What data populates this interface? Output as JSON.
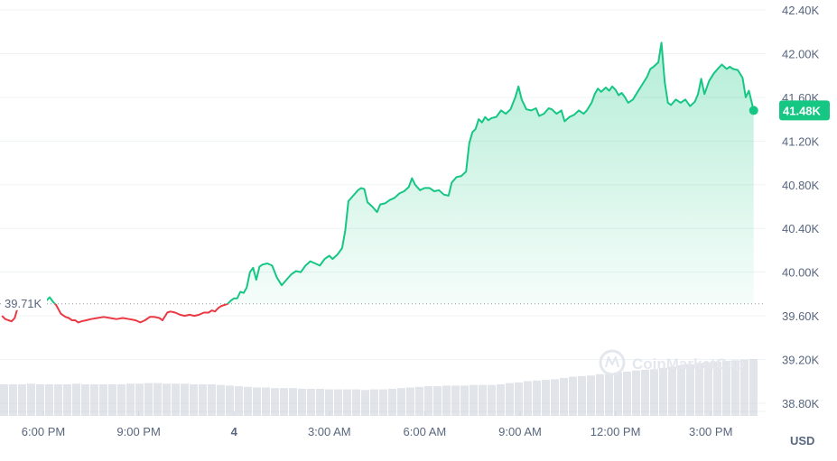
{
  "chart_data": {
    "type": "line",
    "title": "",
    "currency_label": "USD",
    "watermark": "CoinMarketCap",
    "y_ticks": [
      "42.40K",
      "42.00K",
      "41.60K",
      "41.20K",
      "40.80K",
      "40.40K",
      "40.00K",
      "39.60K",
      "39.20K",
      "38.80K"
    ],
    "ylim": [
      38.8,
      42.4
    ],
    "x_ticks": [
      {
        "label": "6:00 PM",
        "hour": 0,
        "bold": false
      },
      {
        "label": "9:00 PM",
        "hour": 3,
        "bold": false
      },
      {
        "label": "4",
        "hour": 6,
        "bold": true
      },
      {
        "label": "3:00 AM",
        "hour": 9,
        "bold": false
      },
      {
        "label": "6:00 AM",
        "hour": 12,
        "bold": false
      },
      {
        "label": "9:00 AM",
        "hour": 15,
        "bold": false
      },
      {
        "label": "12:00 PM",
        "hour": 18,
        "bold": false
      },
      {
        "label": "3:00 PM",
        "hour": 21,
        "bold": false
      }
    ],
    "open_price": 39.71,
    "open_label": "39.71K",
    "last_price": 41.48,
    "last_label": "41.48K",
    "colors": {
      "up": "#16c784",
      "down": "#ea3943",
      "grid": "#eff2f5",
      "volume": "#d4d9e0"
    },
    "series": [
      {
        "points": [
          [
            -1.3,
            39.6
          ],
          [
            -1.2,
            39.57
          ],
          [
            -1.1,
            39.56
          ],
          [
            -1.0,
            39.55
          ],
          [
            -0.9,
            39.58
          ],
          [
            -0.8,
            39.68
          ],
          [
            -0.7,
            39.76
          ],
          [
            -0.6,
            39.72
          ],
          [
            -0.5,
            39.7
          ],
          [
            -0.4,
            39.74
          ],
          [
            -0.3,
            39.75
          ],
          [
            -0.15,
            39.74
          ],
          [
            0.0,
            39.72
          ],
          [
            0.1,
            39.74
          ],
          [
            0.2,
            39.77
          ],
          [
            0.3,
            39.73
          ],
          [
            0.4,
            39.7
          ],
          [
            0.55,
            39.62
          ],
          [
            0.7,
            39.59
          ],
          [
            0.8,
            39.58
          ],
          [
            0.9,
            39.56
          ],
          [
            1.0,
            39.56
          ],
          [
            1.1,
            39.54
          ],
          [
            1.2,
            39.55
          ],
          [
            1.35,
            39.56
          ],
          [
            1.5,
            39.57
          ],
          [
            1.7,
            39.58
          ],
          [
            1.9,
            39.59
          ],
          [
            2.1,
            39.58
          ],
          [
            2.3,
            39.57
          ],
          [
            2.5,
            39.58
          ],
          [
            2.7,
            39.57
          ],
          [
            2.9,
            39.56
          ],
          [
            3.05,
            39.54
          ],
          [
            3.2,
            39.56
          ],
          [
            3.35,
            39.59
          ],
          [
            3.5,
            39.59
          ],
          [
            3.65,
            39.58
          ],
          [
            3.75,
            39.56
          ],
          [
            3.9,
            39.63
          ],
          [
            4.0,
            39.64
          ],
          [
            4.15,
            39.63
          ],
          [
            4.3,
            39.61
          ],
          [
            4.45,
            39.6
          ],
          [
            4.6,
            39.61
          ],
          [
            4.75,
            39.6
          ],
          [
            4.9,
            39.61
          ],
          [
            5.05,
            39.63
          ],
          [
            5.2,
            39.63
          ],
          [
            5.3,
            39.65
          ],
          [
            5.4,
            39.64
          ],
          [
            5.5,
            39.67
          ],
          [
            5.6,
            39.69
          ],
          [
            5.7,
            39.7
          ],
          [
            5.8,
            39.71
          ],
          [
            5.9,
            39.74
          ],
          [
            6.0,
            39.76
          ],
          [
            6.1,
            39.76
          ],
          [
            6.2,
            39.82
          ],
          [
            6.3,
            39.81
          ],
          [
            6.4,
            39.86
          ],
          [
            6.5,
            40.0
          ],
          [
            6.6,
            40.04
          ],
          [
            6.7,
            39.93
          ],
          [
            6.8,
            40.05
          ],
          [
            6.9,
            40.07
          ],
          [
            7.05,
            40.08
          ],
          [
            7.2,
            40.06
          ],
          [
            7.35,
            39.95
          ],
          [
            7.5,
            39.88
          ],
          [
            7.65,
            39.93
          ],
          [
            7.8,
            39.98
          ],
          [
            7.95,
            40.01
          ],
          [
            8.1,
            40.0
          ],
          [
            8.25,
            40.06
          ],
          [
            8.4,
            40.1
          ],
          [
            8.55,
            40.08
          ],
          [
            8.7,
            40.06
          ],
          [
            8.85,
            40.12
          ],
          [
            9.0,
            40.15
          ],
          [
            9.1,
            40.12
          ],
          [
            9.25,
            40.16
          ],
          [
            9.4,
            40.22
          ],
          [
            9.5,
            40.38
          ],
          [
            9.6,
            40.65
          ],
          [
            9.75,
            40.7
          ],
          [
            9.9,
            40.75
          ],
          [
            10.0,
            40.77
          ],
          [
            10.1,
            40.76
          ],
          [
            10.2,
            40.64
          ],
          [
            10.35,
            40.6
          ],
          [
            10.5,
            40.55
          ],
          [
            10.6,
            40.62
          ],
          [
            10.75,
            40.63
          ],
          [
            10.9,
            40.66
          ],
          [
            11.05,
            40.68
          ],
          [
            11.2,
            40.72
          ],
          [
            11.35,
            40.74
          ],
          [
            11.5,
            40.78
          ],
          [
            11.6,
            40.86
          ],
          [
            11.7,
            40.8
          ],
          [
            11.85,
            40.75
          ],
          [
            12.0,
            40.77
          ],
          [
            12.15,
            40.77
          ],
          [
            12.3,
            40.74
          ],
          [
            12.45,
            40.75
          ],
          [
            12.6,
            40.71
          ],
          [
            12.75,
            40.7
          ],
          [
            12.85,
            40.82
          ],
          [
            13.0,
            40.87
          ],
          [
            13.15,
            40.88
          ],
          [
            13.3,
            40.92
          ],
          [
            13.4,
            41.18
          ],
          [
            13.5,
            41.28
          ],
          [
            13.6,
            41.31
          ],
          [
            13.7,
            41.4
          ],
          [
            13.8,
            41.37
          ],
          [
            13.9,
            41.42
          ],
          [
            14.0,
            41.39
          ],
          [
            14.1,
            41.41
          ],
          [
            14.25,
            41.42
          ],
          [
            14.4,
            41.48
          ],
          [
            14.55,
            41.45
          ],
          [
            14.7,
            41.49
          ],
          [
            14.85,
            41.6
          ],
          [
            14.95,
            41.7
          ],
          [
            15.05,
            41.58
          ],
          [
            15.2,
            41.49
          ],
          [
            15.35,
            41.48
          ],
          [
            15.5,
            41.5
          ],
          [
            15.6,
            41.43
          ],
          [
            15.75,
            41.45
          ],
          [
            15.9,
            41.5
          ],
          [
            16.0,
            41.49
          ],
          [
            16.15,
            41.45
          ],
          [
            16.3,
            41.48
          ],
          [
            16.4,
            41.38
          ],
          [
            16.55,
            41.42
          ],
          [
            16.7,
            41.44
          ],
          [
            16.85,
            41.48
          ],
          [
            17.0,
            41.45
          ],
          [
            17.1,
            41.48
          ],
          [
            17.25,
            41.55
          ],
          [
            17.35,
            41.63
          ],
          [
            17.45,
            41.68
          ],
          [
            17.55,
            41.65
          ],
          [
            17.7,
            41.69
          ],
          [
            17.8,
            41.66
          ],
          [
            17.9,
            41.7
          ],
          [
            18.0,
            41.67
          ],
          [
            18.1,
            41.62
          ],
          [
            18.2,
            41.64
          ],
          [
            18.3,
            41.6
          ],
          [
            18.4,
            41.55
          ],
          [
            18.55,
            41.58
          ],
          [
            18.7,
            41.65
          ],
          [
            18.85,
            41.72
          ],
          [
            19.0,
            41.79
          ],
          [
            19.1,
            41.86
          ],
          [
            19.2,
            41.88
          ],
          [
            19.35,
            41.92
          ],
          [
            19.45,
            42.1
          ],
          [
            19.55,
            41.74
          ],
          [
            19.65,
            41.55
          ],
          [
            19.75,
            41.53
          ],
          [
            19.9,
            41.58
          ],
          [
            20.05,
            41.55
          ],
          [
            20.2,
            41.58
          ],
          [
            20.35,
            41.52
          ],
          [
            20.5,
            41.56
          ],
          [
            20.6,
            41.63
          ],
          [
            20.7,
            41.77
          ],
          [
            20.8,
            41.63
          ],
          [
            20.95,
            41.75
          ],
          [
            21.1,
            41.82
          ],
          [
            21.25,
            41.87
          ],
          [
            21.35,
            41.9
          ],
          [
            21.5,
            41.86
          ],
          [
            21.6,
            41.88
          ],
          [
            21.7,
            41.86
          ],
          [
            21.85,
            41.85
          ],
          [
            22.0,
            41.78
          ],
          [
            22.1,
            41.6
          ],
          [
            22.2,
            41.66
          ],
          [
            22.35,
            41.48
          ]
        ]
      }
    ],
    "volume": [
      0.5,
      0.5,
      0.5,
      0.51,
      0.5,
      0.5,
      0.5,
      0.5,
      0.51,
      0.5,
      0.5,
      0.5,
      0.5,
      0.5,
      0.51,
      0.51,
      0.52,
      0.52,
      0.51,
      0.51,
      0.51,
      0.5,
      0.5,
      0.5,
      0.49,
      0.48,
      0.47,
      0.46,
      0.45,
      0.45,
      0.44,
      0.44,
      0.44,
      0.43,
      0.43,
      0.43,
      0.42,
      0.42,
      0.42,
      0.42,
      0.41,
      0.42,
      0.42,
      0.43,
      0.44,
      0.45,
      0.46,
      0.47,
      0.47,
      0.48,
      0.48,
      0.48,
      0.49,
      0.49,
      0.49,
      0.5,
      0.52,
      0.53,
      0.55,
      0.56,
      0.57,
      0.58,
      0.6,
      0.62,
      0.63,
      0.64,
      0.66,
      0.68,
      0.69,
      0.7,
      0.72,
      0.73,
      0.74,
      0.76,
      0.78,
      0.8,
      0.82,
      0.84,
      0.85,
      0.86,
      0.87,
      0.88,
      0.89,
      0.9
    ]
  }
}
